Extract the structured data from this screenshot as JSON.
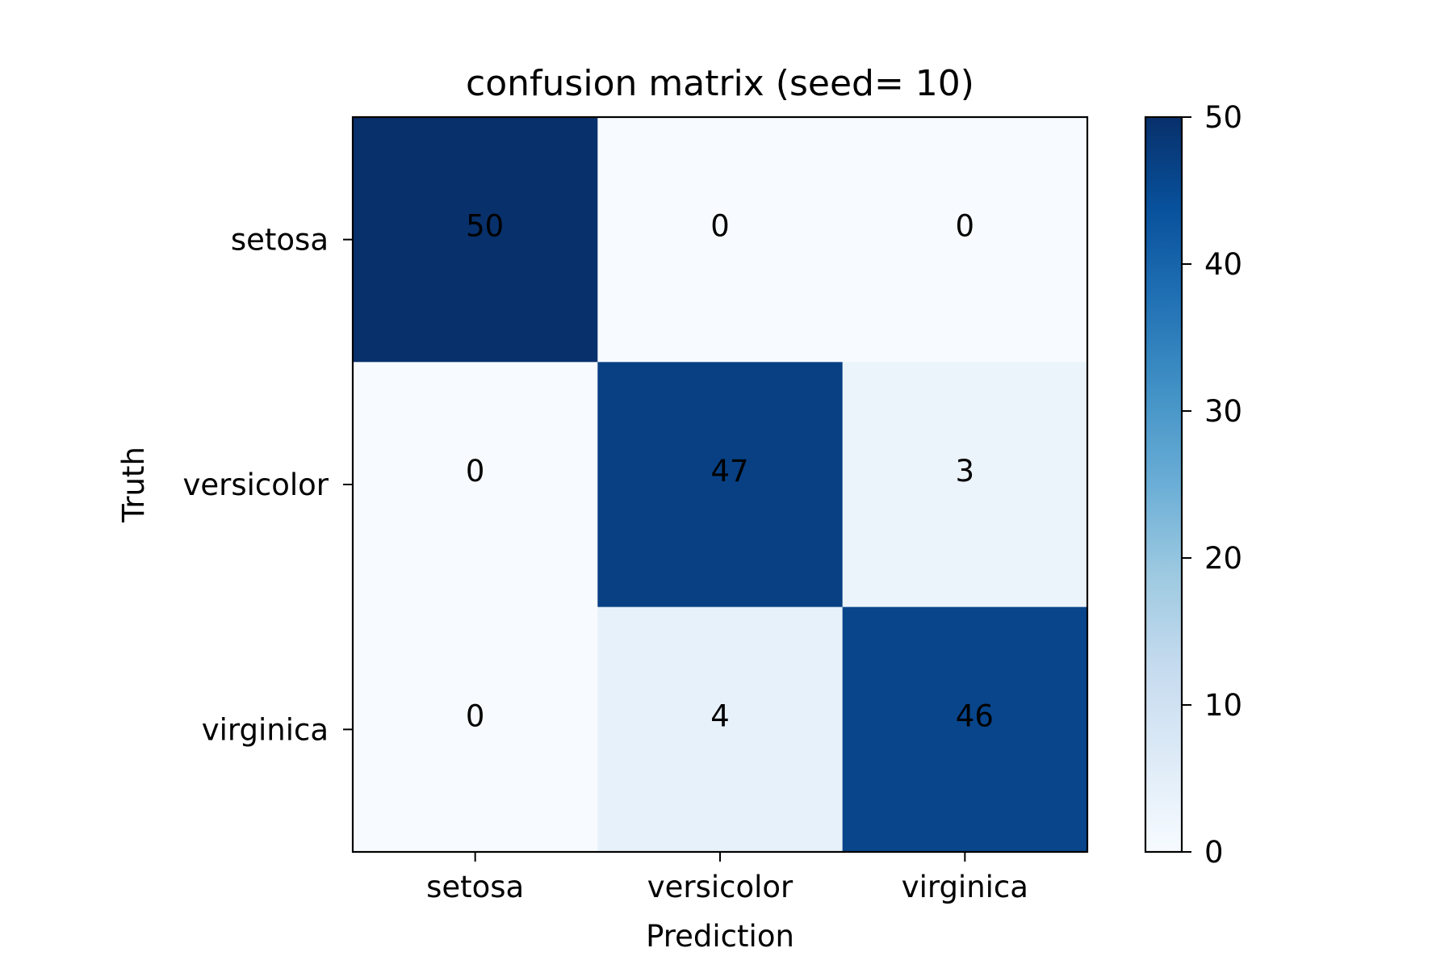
{
  "chart_data": {
    "type": "heatmap",
    "title": "confusion matrix (seed= 10)",
    "xlabel": "Prediction",
    "ylabel": "Truth",
    "x_categories": [
      "setosa",
      "versicolor",
      "virginica"
    ],
    "y_categories": [
      "setosa",
      "versicolor",
      "virginica"
    ],
    "values": [
      [
        50,
        0,
        0
      ],
      [
        0,
        47,
        3
      ],
      [
        0,
        4,
        46
      ]
    ],
    "colormap": "Blues",
    "colorbar": {
      "range": [
        0,
        50
      ],
      "ticks": [
        0,
        10,
        20,
        30,
        40,
        50
      ]
    }
  }
}
